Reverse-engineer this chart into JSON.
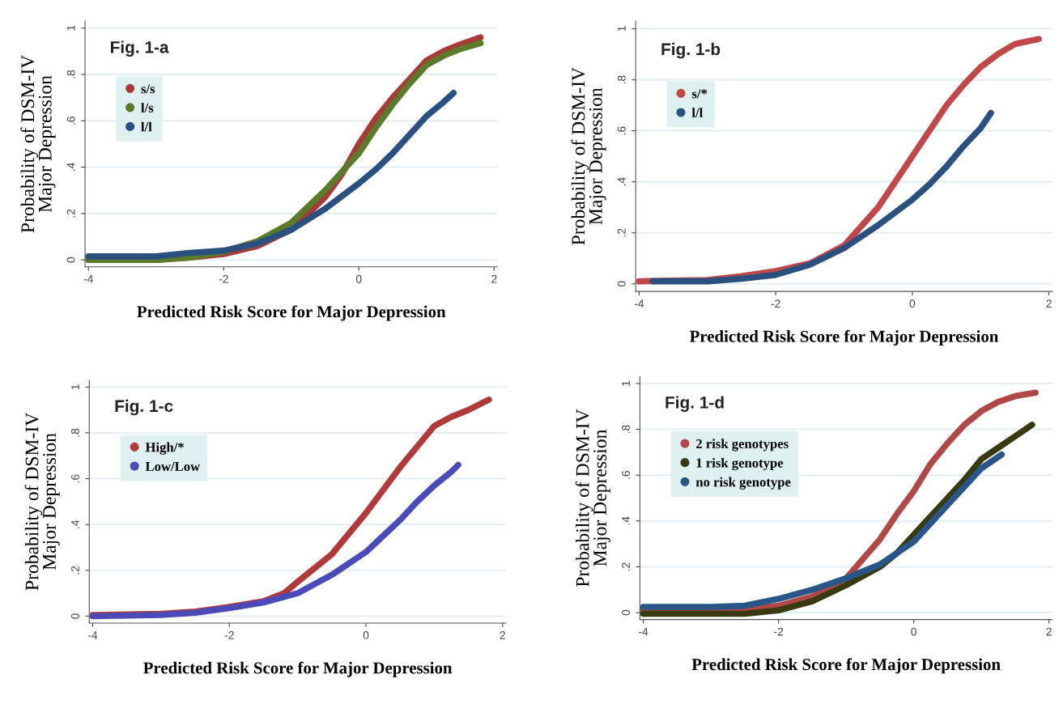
{
  "chart_data": [
    {
      "type": "line",
      "annotations": [
        "Fig. 1-a"
      ],
      "xlabel": "Predicted Risk Score for Major Depression",
      "ylabel": "Probability of DSM-IV\nMajor Depression",
      "xlim": [
        -4.05,
        2.05
      ],
      "ylim": [
        -0.03,
        1.03
      ],
      "xticks": [
        -4,
        -2,
        0,
        2
      ],
      "yticks": [
        0,
        {
          "value": 0.2,
          "label": ".2"
        },
        {
          "value": 0.4,
          "label": ".4"
        },
        {
          "value": 0.6,
          "label": ".6"
        },
        {
          "value": 0.8,
          "label": ".8"
        },
        1
      ],
      "grid": "y",
      "legend": "top left",
      "series": [
        {
          "name": "s/s",
          "color": "#a83a3a",
          "x": [
            -4,
            -3,
            -2.5,
            -2,
            -1.5,
            -1,
            -0.5,
            -0.25,
            0,
            0.25,
            0.5,
            0.75,
            1,
            1.25,
            1.5,
            1.8
          ],
          "values": [
            0,
            0,
            0.01,
            0.025,
            0.06,
            0.13,
            0.27,
            0.37,
            0.5,
            0.61,
            0.7,
            0.78,
            0.86,
            0.9,
            0.93,
            0.96
          ]
        },
        {
          "name": "l/s",
          "color": "#5b7a2a",
          "x": [
            -4,
            -3,
            -2.5,
            -2,
            -1.5,
            -1,
            -0.5,
            -0.25,
            0,
            0.25,
            0.5,
            0.75,
            1,
            1.25,
            1.5,
            1.8
          ],
          "values": [
            0,
            0,
            0.01,
            0.035,
            0.08,
            0.16,
            0.3,
            0.38,
            0.46,
            0.57,
            0.67,
            0.76,
            0.84,
            0.88,
            0.91,
            0.935
          ]
        },
        {
          "name": "l/l",
          "color": "#2a5080",
          "x": [
            -4,
            -3,
            -2.5,
            -2,
            -1.5,
            -1,
            -0.5,
            0,
            0.25,
            0.5,
            0.75,
            1,
            1.25,
            1.4
          ],
          "values": [
            0.015,
            0.015,
            0.03,
            0.04,
            0.07,
            0.13,
            0.22,
            0.33,
            0.39,
            0.46,
            0.54,
            0.62,
            0.68,
            0.72
          ]
        }
      ]
    },
    {
      "type": "line",
      "annotations": [
        "Fig. 1-b"
      ],
      "xlabel": "Predicted Risk Score for Major Depression",
      "ylabel": "Probability of DSM-IV\nMajor Depression",
      "xlim": [
        -4.05,
        2.05
      ],
      "ylim": [
        -0.03,
        1.03
      ],
      "xticks": [
        -4,
        -2,
        0,
        2
      ],
      "yticks": [
        0,
        {
          "value": 0.2,
          "label": ".2"
        },
        {
          "value": 0.4,
          "label": ".4"
        },
        {
          "value": 0.6,
          "label": ".6"
        },
        {
          "value": 0.8,
          "label": ".8"
        },
        1
      ],
      "grid": "y",
      "legend": "top left",
      "series": [
        {
          "name": "s/*",
          "color": "#c04848",
          "x": [
            -4,
            -3,
            -2.5,
            -2,
            -1.5,
            -1,
            -0.5,
            -0.25,
            0,
            0.25,
            0.5,
            0.75,
            1,
            1.25,
            1.5,
            1.85
          ],
          "values": [
            0.01,
            0.015,
            0.03,
            0.05,
            0.08,
            0.15,
            0.3,
            0.4,
            0.5,
            0.6,
            0.7,
            0.78,
            0.85,
            0.9,
            0.94,
            0.96
          ]
        },
        {
          "name": "l/l",
          "color": "#2a5080",
          "x": [
            -3.8,
            -3,
            -2.5,
            -2,
            -1.5,
            -1,
            -0.5,
            0,
            0.25,
            0.5,
            0.75,
            1,
            1.15
          ],
          "values": [
            0.01,
            0.01,
            0.02,
            0.035,
            0.075,
            0.14,
            0.23,
            0.33,
            0.39,
            0.46,
            0.54,
            0.61,
            0.67
          ]
        }
      ]
    },
    {
      "type": "line",
      "annotations": [
        "Fig. 1-c"
      ],
      "xlabel": "Predicted Risk Score for Major Depression",
      "ylabel": "Probability of DSM-IV\nMajor Depression",
      "xlim": [
        -4.05,
        2.05
      ],
      "ylim": [
        -0.03,
        1.03
      ],
      "xticks": [
        -4,
        -2,
        0,
        2
      ],
      "yticks": [
        0,
        {
          "value": 0.2,
          "label": ".2"
        },
        {
          "value": 0.4,
          "label": ".4"
        },
        {
          "value": 0.6,
          "label": ".6"
        },
        {
          "value": 0.8,
          "label": ".8"
        },
        1
      ],
      "grid": "y",
      "legend": "top left",
      "series": [
        {
          "name": "High/*",
          "color": "#b03a3a",
          "x": [
            -4,
            -3,
            -2.5,
            -2,
            -1.5,
            -1.2,
            -1,
            -0.5,
            0,
            0.25,
            0.5,
            0.75,
            1,
            1.25,
            1.5,
            1.8
          ],
          "values": [
            0.005,
            0.01,
            0.02,
            0.04,
            0.065,
            0.1,
            0.15,
            0.27,
            0.45,
            0.55,
            0.65,
            0.74,
            0.83,
            0.87,
            0.9,
            0.945
          ]
        },
        {
          "name": "Low/Low",
          "color": "#4a4ab8",
          "x": [
            -4,
            -3,
            -2.5,
            -2,
            -1.5,
            -1,
            -0.5,
            0,
            0.25,
            0.5,
            0.75,
            1,
            1.25,
            1.35
          ],
          "values": [
            0,
            0.005,
            0.015,
            0.035,
            0.06,
            0.1,
            0.18,
            0.28,
            0.35,
            0.42,
            0.5,
            0.57,
            0.63,
            0.66
          ]
        }
      ]
    },
    {
      "type": "line",
      "annotations": [
        "Fig. 1-d"
      ],
      "xlabel": "Predicted Risk Score for Major Depression",
      "ylabel": "Probability of DSM-IV\nMajor Depression",
      "xlim": [
        -4.05,
        2.05
      ],
      "ylim": [
        -0.03,
        1.03
      ],
      "xticks": [
        -4,
        -2,
        0,
        2
      ],
      "yticks": [
        0,
        {
          "value": 0.2,
          "label": ".2"
        },
        {
          "value": 0.4,
          "label": ".4"
        },
        {
          "value": 0.6,
          "label": ".6"
        },
        {
          "value": 0.8,
          "label": ".8"
        },
        1
      ],
      "grid": "y",
      "legend": "top left",
      "series": [
        {
          "name": "2 risk genotypes",
          "color": "#b04848",
          "x": [
            -4,
            -3,
            -2.5,
            -2,
            -1.5,
            -1,
            -0.5,
            -0.25,
            0,
            0.25,
            0.5,
            0.75,
            1,
            1.25,
            1.5,
            1.8
          ],
          "values": [
            0.01,
            0.01,
            0.015,
            0.03,
            0.07,
            0.15,
            0.32,
            0.43,
            0.53,
            0.65,
            0.74,
            0.82,
            0.88,
            0.92,
            0.945,
            0.96
          ]
        },
        {
          "name": "1 risk genotype",
          "color": "#3a3a12",
          "x": [
            -4,
            -3,
            -2.5,
            -2,
            -1.5,
            -1,
            -0.5,
            -0.25,
            0,
            0.25,
            0.5,
            0.75,
            1,
            1.25,
            1.5,
            1.75
          ],
          "values": [
            -0.005,
            -0.005,
            -0.005,
            0.01,
            0.05,
            0.12,
            0.2,
            0.26,
            0.34,
            0.42,
            0.5,
            0.58,
            0.67,
            0.72,
            0.77,
            0.82
          ]
        },
        {
          "name": "no risk genotype",
          "color": "#2a5588",
          "x": [
            -4,
            -3,
            -2.5,
            -2,
            -1.5,
            -1,
            -0.5,
            0,
            0.25,
            0.5,
            0.75,
            1,
            1.3
          ],
          "values": [
            0.025,
            0.025,
            0.03,
            0.06,
            0.1,
            0.15,
            0.21,
            0.31,
            0.39,
            0.47,
            0.55,
            0.63,
            0.69
          ]
        }
      ]
    }
  ]
}
